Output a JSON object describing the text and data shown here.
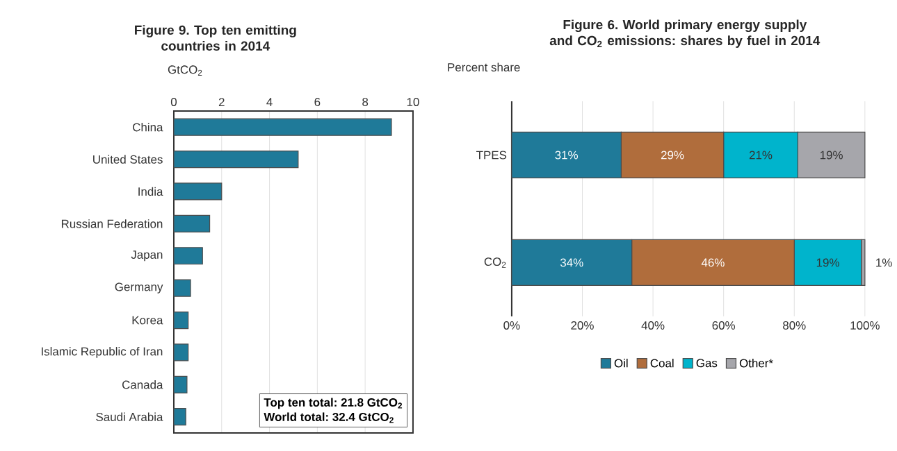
{
  "chart_data": [
    {
      "type": "bar",
      "orientation": "horizontal",
      "title": "Figure 9. Top ten emitting countries in 2014",
      "xlabel": "GtCO$_{2}$",
      "categories": [
        "China",
        "United States",
        "India",
        "Russian Federation",
        "Japan",
        "Germany",
        "Korea",
        "Islamic Republic of Iran",
        "Canada",
        "Saudi Arabia"
      ],
      "values": [
        9.1,
        5.2,
        2.0,
        1.5,
        1.2,
        0.7,
        0.6,
        0.6,
        0.55,
        0.5
      ],
      "color": "#1f7a99",
      "xlim": [
        0,
        10
      ],
      "xticks": [
        0,
        2,
        4,
        6,
        8,
        10
      ],
      "grid": "x",
      "annotations": [
        "Top ten total:   21.8 GtCO$_{2}$",
        "World total:   32.4 GtCO$_{2}$"
      ]
    },
    {
      "type": "bar",
      "orientation": "horizontal",
      "stacked": true,
      "title": "Figure 6. World primary energy supply and CO$_{2}$ emissions: shares by fuel in 2014",
      "xlabel": "Percent share",
      "categories": [
        "TPES",
        "CO$_{2}$"
      ],
      "series": [
        {
          "name": "Oil",
          "color": "#1f7a99",
          "values": [
            31,
            34
          ],
          "value_labels": [
            "31%",
            "34%"
          ]
        },
        {
          "name": "Coal",
          "color": "#b06d3c",
          "values": [
            29,
            46
          ],
          "value_labels": [
            "29%",
            "46%"
          ]
        },
        {
          "name": "Gas",
          "color": "#00b4cc",
          "values": [
            21,
            19
          ],
          "value_labels": [
            "21%",
            "19%"
          ]
        },
        {
          "name": "Other*",
          "color": "#a6a6ab",
          "values": [
            19,
            1
          ],
          "value_labels": [
            "19%",
            "1%"
          ]
        }
      ],
      "xlim": [
        0,
        100
      ],
      "xticks": [
        {
          "value": 0,
          "label": "0%"
        },
        {
          "value": 20,
          "label": "20%"
        },
        {
          "value": 40,
          "label": "40%"
        },
        {
          "value": 60,
          "label": "60%"
        },
        {
          "value": 80,
          "label": "80%"
        },
        {
          "value": 100,
          "label": "100%"
        }
      ],
      "grid": "x",
      "legend": "bottom"
    }
  ]
}
